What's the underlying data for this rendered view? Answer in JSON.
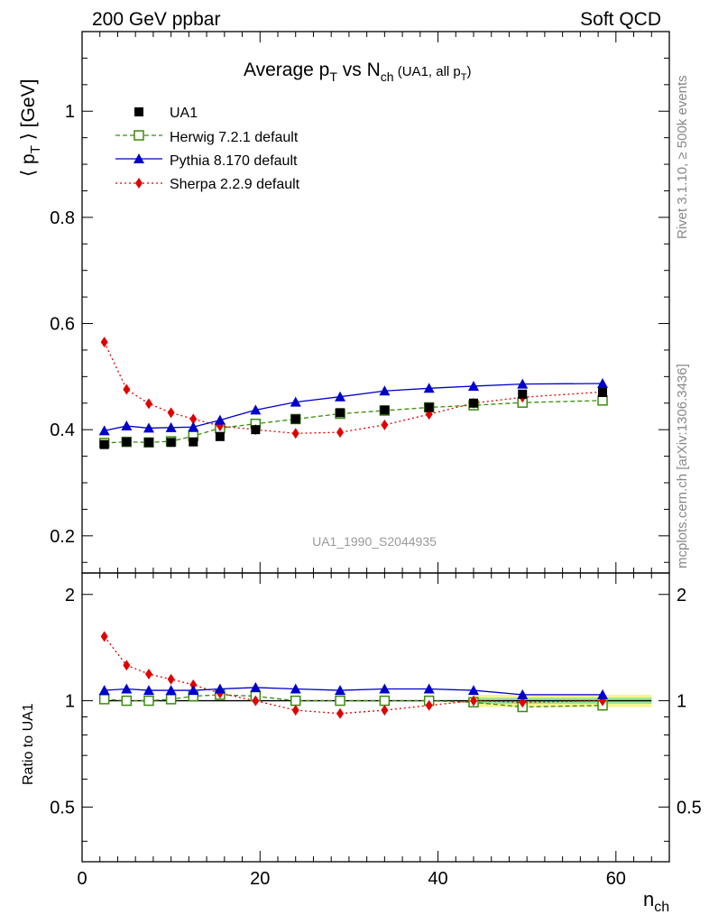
{
  "header": {
    "left": "200 GeV ppbar",
    "right": "Soft QCD"
  },
  "side_labels": {
    "top": "Rivet 3.1.10, ≥ 500k events",
    "bottom": "mcplots.cern.ch [arXiv:1306.3436]"
  },
  "watermark": "UA1_1990_S2044935",
  "colors": {
    "data": "#000000",
    "herwig": "#3a8c0c",
    "pythia": "#0000cc",
    "sherpa": "#e00000",
    "band_inner": "#9be39b",
    "band_outer": "#f5f58c"
  },
  "chart_data": [
    {
      "type": "scatter",
      "panel": "main",
      "title_main": "Average p",
      "title_sub_T": "T",
      "title_vs": " vs N",
      "title_sub_ch": "ch",
      "title_note": " (UA1, all p",
      "title_note_end": ")",
      "ylabel": "⟨ p",
      "ylabel_sub": "T",
      "ylabel_end": " ⟩ [GeV]",
      "xlabel": "n",
      "xlabel_sub": "ch",
      "xlim": [
        0,
        66
      ],
      "ylim": [
        0.13,
        1.15
      ],
      "yticks": [
        0.2,
        0.4,
        0.6,
        0.8,
        1.0
      ],
      "ytick_labels": [
        "0.2",
        "0.4",
        "0.6",
        "0.8",
        "1"
      ],
      "xticks": [
        0,
        20,
        40,
        60
      ],
      "xtick_labels": [
        "0",
        "20",
        "40",
        "60"
      ],
      "legend": [
        {
          "key": "data",
          "label": "UA1"
        },
        {
          "key": "herwig",
          "label": "Herwig 7.2.1 default"
        },
        {
          "key": "pythia",
          "label": "Pythia 8.170 default"
        },
        {
          "key": "sherpa",
          "label": "Sherpa 2.2.9 default"
        }
      ],
      "series": [
        {
          "name": "UA1",
          "key": "data",
          "x": [
            2.5,
            5,
            7.5,
            10,
            12.5,
            15.5,
            19.5,
            24,
            29,
            34,
            39,
            44,
            49.5,
            58.5
          ],
          "y": [
            0.372,
            0.377,
            0.376,
            0.376,
            0.377,
            0.387,
            0.4,
            0.42,
            0.432,
            0.437,
            0.442,
            0.45,
            0.467,
            0.47
          ]
        },
        {
          "name": "Herwig 7.2.1 default",
          "key": "herwig",
          "x": [
            2.5,
            5,
            7.5,
            10,
            12.5,
            15.5,
            19.5,
            24,
            29,
            34,
            39,
            44,
            49.5,
            58.5
          ],
          "y": [
            0.375,
            0.377,
            0.376,
            0.378,
            0.388,
            0.403,
            0.411,
            0.42,
            0.43,
            0.436,
            0.442,
            0.446,
            0.451,
            0.455
          ]
        },
        {
          "name": "Pythia 8.170 default",
          "key": "pythia",
          "x": [
            2.5,
            5,
            7.5,
            10,
            12.5,
            15.5,
            19.5,
            24,
            29,
            34,
            39,
            44,
            49.5,
            58.5
          ],
          "y": [
            0.398,
            0.407,
            0.403,
            0.404,
            0.405,
            0.418,
            0.437,
            0.452,
            0.462,
            0.473,
            0.478,
            0.482,
            0.486,
            0.487
          ]
        },
        {
          "name": "Sherpa 2.2.9 default",
          "key": "sherpa",
          "x": [
            2.5,
            5,
            7.5,
            10,
            12.5,
            15.5,
            19.5,
            24,
            29,
            34,
            39,
            44,
            49.5,
            58.5
          ],
          "y": [
            0.565,
            0.476,
            0.449,
            0.432,
            0.42,
            0.407,
            0.4,
            0.393,
            0.395,
            0.409,
            0.429,
            0.45,
            0.461,
            0.471
          ]
        }
      ]
    },
    {
      "type": "line",
      "panel": "ratio",
      "ylabel": "Ratio to UA1",
      "xlim": [
        0,
        66
      ],
      "ylim": [
        0.35,
        2.3
      ],
      "yticks": [
        0.5,
        1,
        2
      ],
      "ytick_labels": [
        "0.5",
        "1",
        "2"
      ],
      "band_x": [
        44,
        64
      ],
      "band_inner": 0.02,
      "band_outer": 0.04,
      "series": [
        {
          "name": "Herwig 7.2.1 default",
          "key": "herwig",
          "x": [
            2.5,
            5,
            7.5,
            10,
            12.5,
            15.5,
            19.5,
            24,
            29,
            34,
            39,
            44,
            49.5,
            58.5
          ],
          "y": [
            1.01,
            1.0,
            1.0,
            1.01,
            1.03,
            1.04,
            1.03,
            1.0,
            1.0,
            1.0,
            1.0,
            0.99,
            0.96,
            0.97
          ]
        },
        {
          "name": "Pythia 8.170 default",
          "key": "pythia",
          "x": [
            2.5,
            5,
            7.5,
            10,
            12.5,
            15.5,
            19.5,
            24,
            29,
            34,
            39,
            44,
            49.5,
            58.5
          ],
          "y": [
            1.07,
            1.08,
            1.07,
            1.07,
            1.07,
            1.08,
            1.09,
            1.08,
            1.07,
            1.08,
            1.08,
            1.07,
            1.04,
            1.04
          ]
        },
        {
          "name": "Sherpa 2.2.9 default",
          "key": "sherpa",
          "x": [
            2.5,
            5,
            7.5,
            10,
            12.5,
            15.5,
            19.5,
            24,
            29,
            34,
            39,
            44,
            49.5,
            58.5
          ],
          "y": [
            1.52,
            1.26,
            1.19,
            1.15,
            1.11,
            1.05,
            1.0,
            0.94,
            0.92,
            0.94,
            0.97,
            1.0,
            0.99,
            1.0
          ]
        }
      ]
    }
  ]
}
